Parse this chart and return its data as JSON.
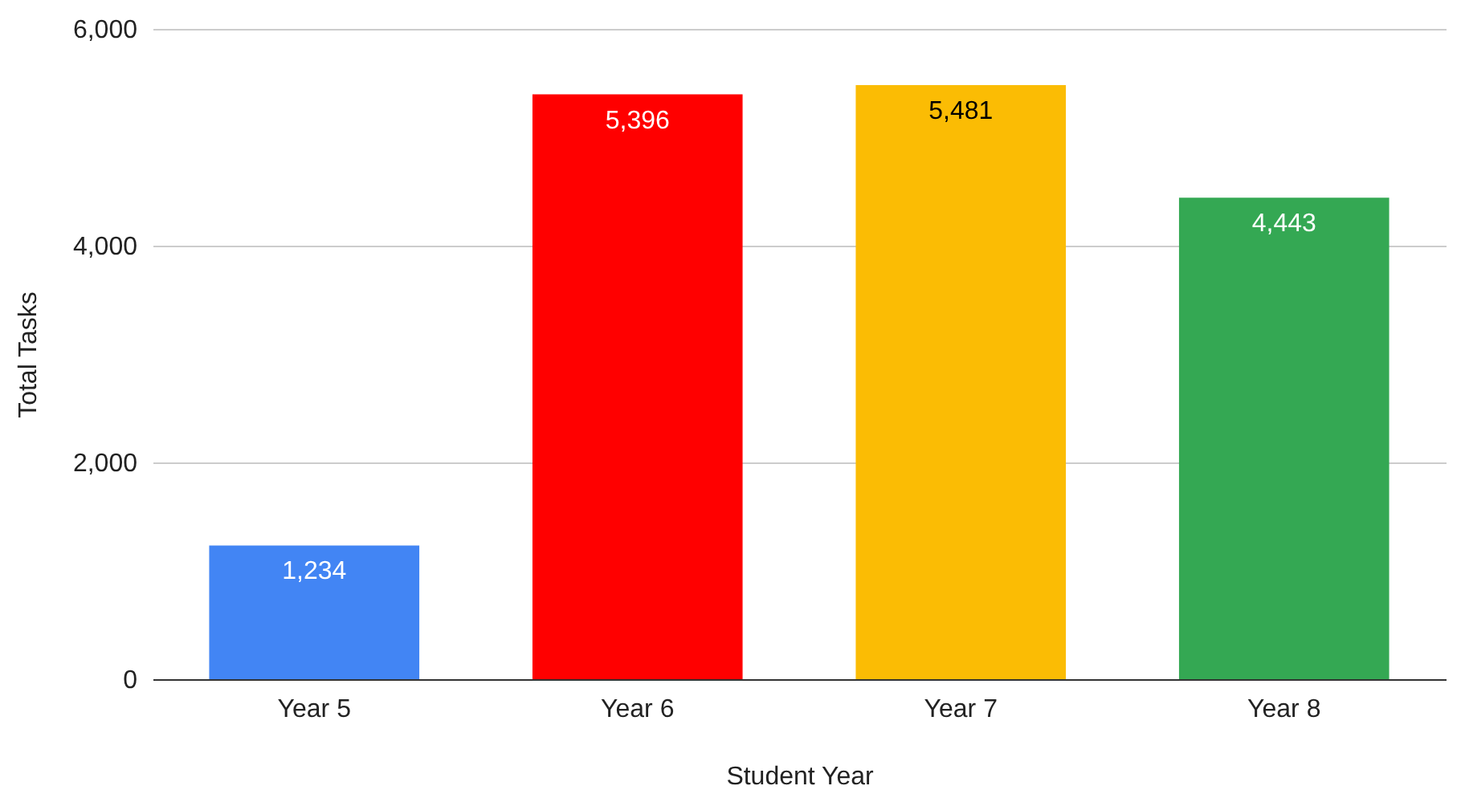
{
  "chart_data": {
    "type": "bar",
    "xlabel": "Student Year",
    "ylabel": "Total Tasks",
    "categories": [
      "Year 5",
      "Year 6",
      "Year 7",
      "Year 8"
    ],
    "values": [
      1234,
      5396,
      5481,
      4443
    ],
    "colors": [
      "#4285f4",
      "#ff0000",
      "#fbbc04",
      "#34a853"
    ],
    "ylim": [
      0,
      6000
    ],
    "yticks": [
      {
        "value": 0,
        "label": "0"
      },
      {
        "value": 2000,
        "label": "2,000"
      },
      {
        "value": 4000,
        "label": "4,000"
      },
      {
        "value": 6000,
        "label": "6,000"
      }
    ],
    "value_labels": [
      "1,234",
      "5,396",
      "5,481",
      "4,443"
    ],
    "grid": "y"
  }
}
